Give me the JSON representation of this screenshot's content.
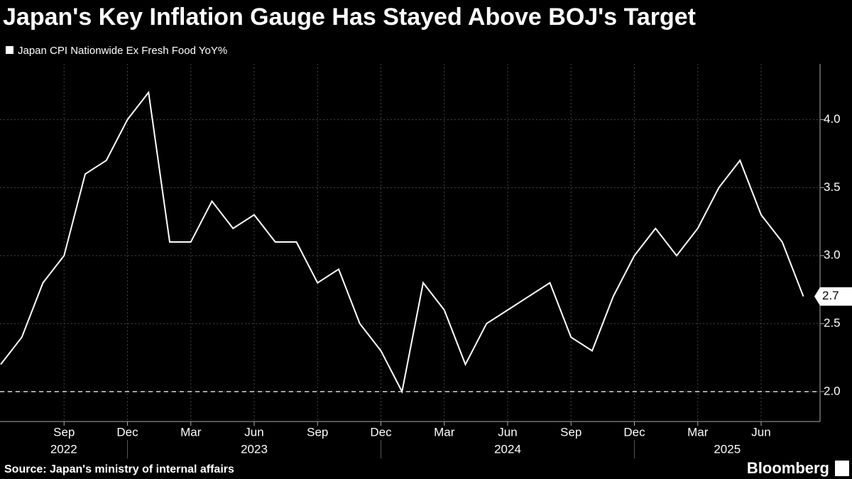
{
  "chart_data": {
    "type": "line",
    "title": "Japan's Key Inflation Gauge Has Stayed Above BOJ's Target",
    "source": "Source: Japan's ministry of internal affairs",
    "brand": "Bloomberg",
    "x": [
      "2022-06",
      "2022-07",
      "2022-08",
      "2022-09",
      "2022-10",
      "2022-11",
      "2022-12",
      "2023-01",
      "2023-02",
      "2023-03",
      "2023-04",
      "2023-05",
      "2023-06",
      "2023-07",
      "2023-08",
      "2023-09",
      "2023-10",
      "2023-11",
      "2023-12",
      "2024-01",
      "2024-02",
      "2024-03",
      "2024-04",
      "2024-05",
      "2024-06",
      "2024-07",
      "2024-08",
      "2024-09",
      "2024-10",
      "2024-11",
      "2024-12",
      "2025-01",
      "2025-02",
      "2025-03",
      "2025-04",
      "2025-05",
      "2025-06",
      "2025-07",
      "2025-08"
    ],
    "series": [
      {
        "name": "Japan CPI Nationwide Ex Fresh Food YoY%",
        "color": "#ffffff",
        "values": [
          2.2,
          2.4,
          2.8,
          3.0,
          3.6,
          3.7,
          4.0,
          4.2,
          3.1,
          3.1,
          3.4,
          3.2,
          3.3,
          3.1,
          3.1,
          2.8,
          2.9,
          2.5,
          2.3,
          2.0,
          2.8,
          2.6,
          2.2,
          2.5,
          2.6,
          2.7,
          2.8,
          2.4,
          2.3,
          2.7,
          3.0,
          3.2,
          3.0,
          3.2,
          3.5,
          3.7,
          3.3,
          3.1,
          2.7
        ]
      }
    ],
    "ylim": [
      1.78,
      4.41
    ],
    "yticks": [
      {
        "value": 2,
        "label": "2.0"
      },
      2.5,
      {
        "value": 3,
        "label": "3.0"
      },
      3.5,
      {
        "value": 4,
        "label": "4.0"
      }
    ],
    "xticks": [
      {
        "value": "2022-09",
        "label": "Sep"
      },
      {
        "value": "2022-12",
        "label": "Dec"
      },
      {
        "value": "2023-03",
        "label": "Mar"
      },
      {
        "value": "2023-06",
        "label": "Jun"
      },
      {
        "value": "2023-09",
        "label": "Sep"
      },
      {
        "value": "2023-12",
        "label": "Dec"
      },
      {
        "value": "2024-03",
        "label": "Mar"
      },
      {
        "value": "2024-06",
        "label": "Jun"
      },
      {
        "value": "2024-09",
        "label": "Sep"
      },
      {
        "value": "2024-12",
        "label": "Dec"
      },
      {
        "value": "2025-03",
        "label": "Mar"
      },
      {
        "value": "2025-06",
        "label": "Jun"
      }
    ],
    "year_labels": [
      "2022",
      "2023",
      "2024",
      "2025"
    ],
    "reference_line": 2,
    "grid": true
  }
}
